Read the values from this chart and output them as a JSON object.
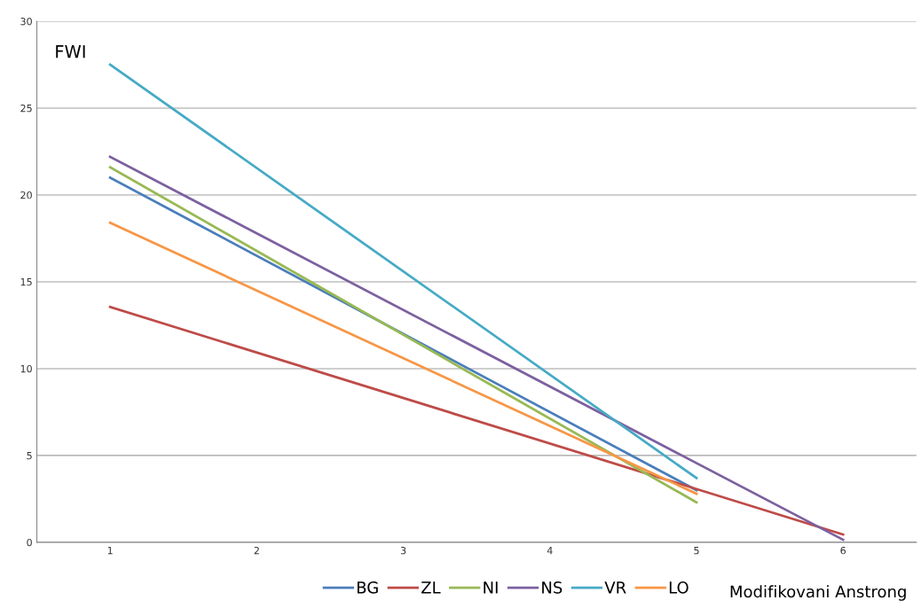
{
  "chart_data": {
    "type": "line",
    "ylabel": "FWI",
    "xlabel": "Modifikovani Anstrong",
    "xlim": [
      0.5,
      6.5
    ],
    "xticks": [
      1,
      2,
      3,
      4,
      5,
      6
    ],
    "ylim": [
      0,
      30
    ],
    "yticks": [
      0,
      5,
      10,
      15,
      20,
      25,
      30
    ],
    "grid": "y",
    "legend": "bottom",
    "series": [
      {
        "name": "BG",
        "color": "#4a7ebb",
        "x": [
          1,
          5
        ],
        "values": [
          21,
          3.0
        ]
      },
      {
        "name": "ZL",
        "color": "#be4b48",
        "x": [
          1,
          6
        ],
        "values": [
          13.55,
          0.45
        ]
      },
      {
        "name": "NI",
        "color": "#98b954",
        "x": [
          1,
          5
        ],
        "values": [
          21.6,
          2.3
        ]
      },
      {
        "name": "NS",
        "color": "#7d60a0",
        "x": [
          1,
          6
        ],
        "values": [
          22.2,
          0.15
        ]
      },
      {
        "name": "VR",
        "color": "#46aac5",
        "x": [
          1,
          5
        ],
        "values": [
          27.5,
          3.7
        ]
      },
      {
        "name": "LO",
        "color": "#f79646",
        "x": [
          1,
          5
        ],
        "values": [
          18.4,
          2.8
        ]
      }
    ]
  }
}
